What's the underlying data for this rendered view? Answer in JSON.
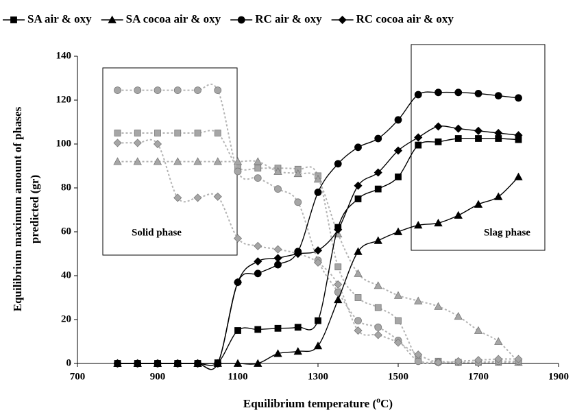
{
  "chart_data": {
    "type": "line",
    "x": [
      800,
      850,
      900,
      950,
      1000,
      1050,
      1100,
      1150,
      1200,
      1250,
      1300,
      1350,
      1400,
      1450,
      1500,
      1550,
      1600,
      1650,
      1700,
      1750,
      1800
    ],
    "series": [
      {
        "name": "SA air & oxy",
        "color": "#000000",
        "marker": "square",
        "line_style": "solid",
        "values": [
          0,
          0,
          0,
          0,
          0,
          0.3,
          15,
          15.5,
          16,
          16.5,
          19.5,
          62,
          75,
          79.5,
          85,
          99.5,
          101,
          102.5,
          102.5,
          102.5,
          102
        ]
      },
      {
        "name": "SA cocoa air & oxy",
        "color": "#000000",
        "marker": "triangle",
        "line_style": "solid",
        "values": [
          0,
          0,
          0,
          0,
          0,
          0,
          0,
          0,
          4.5,
          5.5,
          8,
          29,
          51,
          56,
          60,
          63,
          64,
          67.5,
          72.5,
          76,
          85
        ]
      },
      {
        "name": "RC air & oxy",
        "color": "#000000",
        "marker": "circle",
        "line_style": "solid",
        "values": [
          0,
          0,
          0,
          0,
          0,
          0,
          37,
          41,
          45,
          51,
          78,
          91,
          98.5,
          102.5,
          111,
          122.5,
          123.5,
          123.5,
          123,
          122,
          121
        ]
      },
      {
        "name": "RC cocoa air & oxy",
        "color": "#000000",
        "marker": "diamond",
        "line_style": "solid",
        "values": [
          0,
          0,
          0,
          0,
          0,
          0,
          37,
          46.5,
          48,
          50,
          51.5,
          61,
          81,
          87,
          97,
          103,
          108,
          107,
          106,
          105,
          104
        ]
      },
      {
        "color": "#a6a6a6",
        "marker": "square",
        "line_style": "dashed",
        "values": [
          105,
          105,
          105,
          105,
          105,
          105,
          89.5,
          89,
          89,
          88.5,
          85.5,
          44,
          30,
          25.5,
          19.5,
          2,
          1,
          0.5,
          0.5,
          0.5,
          0.5
        ]
      },
      {
        "color": "#a6a6a6",
        "marker": "triangle",
        "line_style": "dashed",
        "values": [
          92,
          92,
          92,
          92,
          92,
          92,
          92,
          92,
          87.5,
          86.5,
          84,
          59,
          41,
          35.5,
          31,
          28.5,
          26,
          21.5,
          15,
          10,
          0.5
        ]
      },
      {
        "color": "#a6a6a6",
        "marker": "circle",
        "line_style": "dashed",
        "values": [
          124.5,
          124.5,
          124.5,
          124.5,
          124.5,
          124.5,
          87.5,
          84.5,
          79.5,
          73.5,
          47,
          32.5,
          19.5,
          16.5,
          10.5,
          1,
          0.5,
          0.5,
          0.5,
          1,
          1
        ]
      },
      {
        "color": "#a6a6a6",
        "marker": "diamond",
        "line_style": "dashed",
        "values": [
          100.5,
          100.5,
          100,
          75.5,
          75.5,
          76,
          57,
          53.5,
          52,
          50,
          46,
          36,
          15,
          13,
          9.5,
          4,
          0.5,
          1,
          1.5,
          2,
          2
        ]
      }
    ],
    "xlabel": [
      "Equilibrium temperature (",
      "o",
      "C)"
    ],
    "ylabel": [
      "Equilibrium maximum amount of phases",
      "predicted (gr)"
    ],
    "annotations": [
      "Solid phase",
      "Slag phase"
    ],
    "xlim": [
      700,
      1900
    ],
    "xticks": [
      700,
      900,
      1100,
      1300,
      1500,
      1700,
      1900
    ],
    "ylim": [
      0,
      140
    ],
    "yticks": [
      0,
      20,
      40,
      60,
      80,
      100,
      120,
      140
    ],
    "grid": false,
    "legend": "top"
  }
}
